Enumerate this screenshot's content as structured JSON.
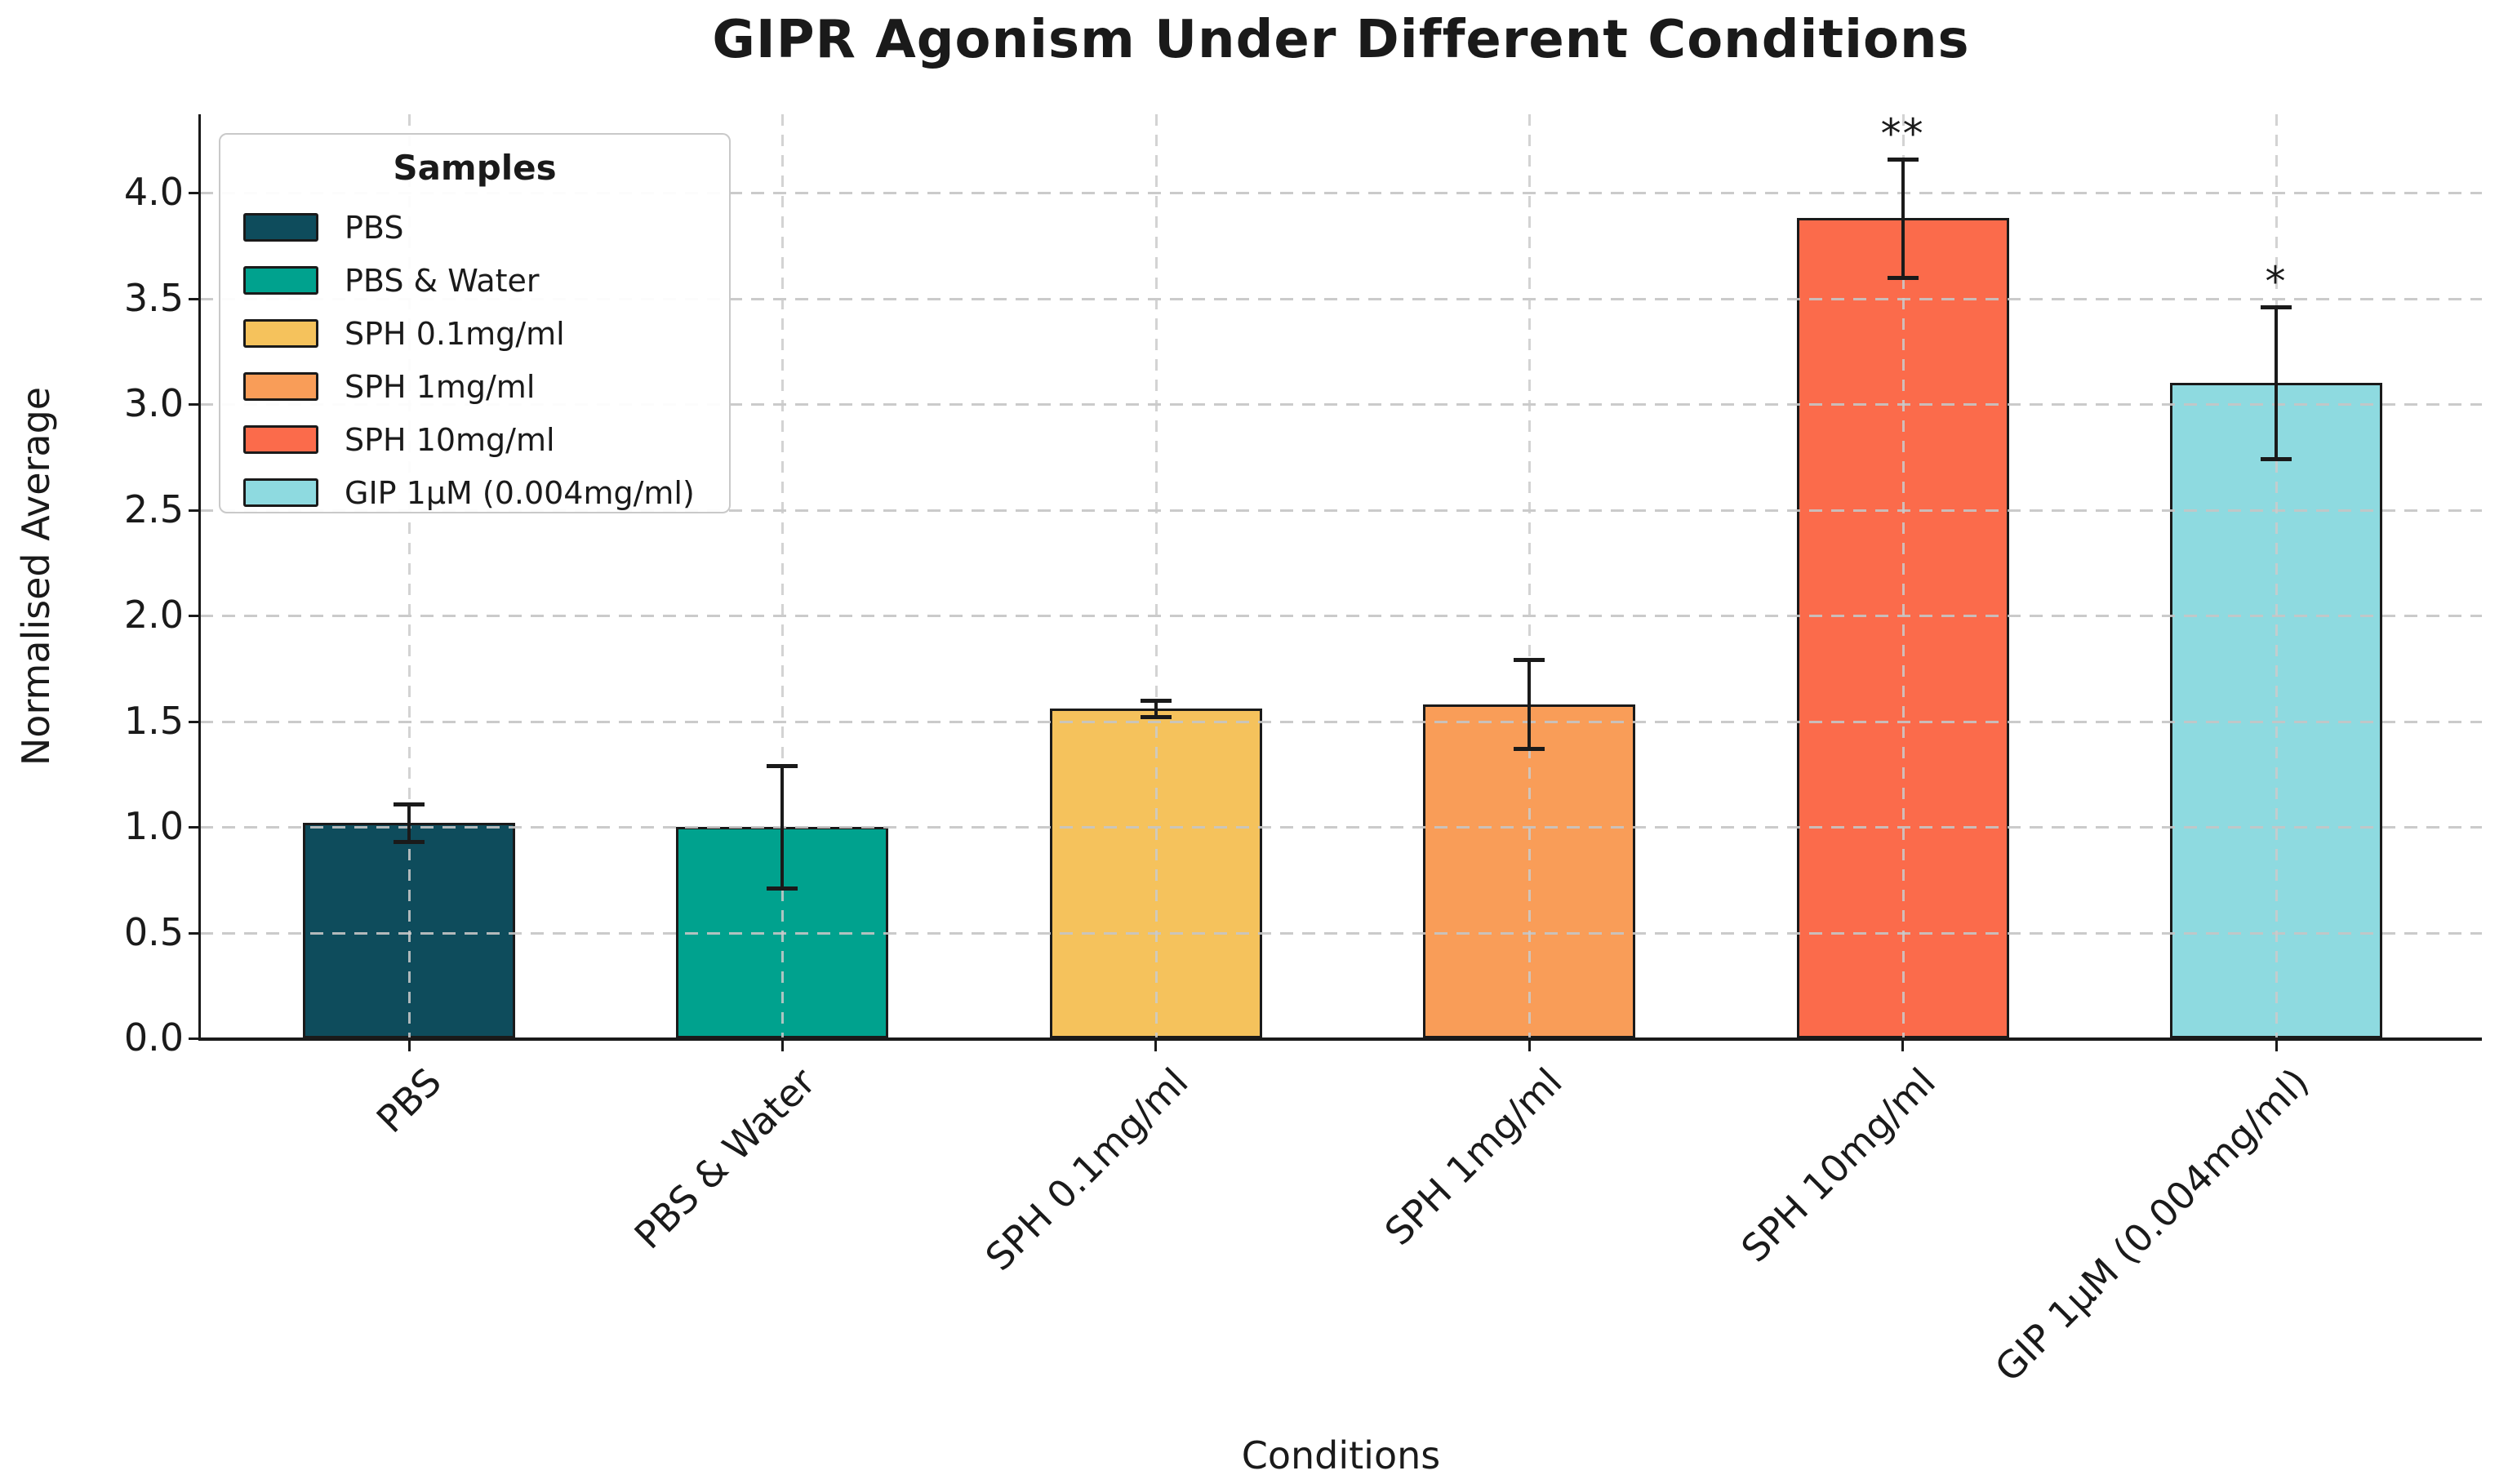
{
  "chart_data": {
    "type": "bar",
    "title": "GIPR Agonism Under Different Conditions",
    "xlabel": "Conditions",
    "ylabel": "Normalised Average",
    "categories": [
      "PBS",
      "PBS & Water",
      "SPH 0.1mg/ml",
      "SPH 1mg/ml",
      "SPH 10mg/ml",
      "GIP 1μM (0.004mg/ml)"
    ],
    "values": [
      1.02,
      1.0,
      1.56,
      1.58,
      3.88,
      3.1
    ],
    "errors": [
      0.09,
      0.29,
      0.04,
      0.21,
      0.28,
      0.36
    ],
    "significance": [
      "",
      "",
      "",
      "",
      "**",
      "*"
    ],
    "bar_colors": [
      "#0E4C5C",
      "#00A28E",
      "#F5C25C",
      "#F99D58",
      "#FB6B4B",
      "#8EDAE0"
    ],
    "ylim": [
      0,
      4.37
    ],
    "yticks": [
      "0.0",
      "0.5",
      "1.0",
      "1.5",
      "2.0",
      "2.5",
      "3.0",
      "3.5",
      "4.0"
    ],
    "grid": true,
    "grid_style": "dashed",
    "grid_color": "#c8c8c8",
    "axis_color": "#1a1a1a",
    "legend": {
      "title": "Samples",
      "position": "upper-left",
      "items": [
        {
          "label": "PBS",
          "color": "#0E4C5C"
        },
        {
          "label": "PBS & Water",
          "color": "#00A28E"
        },
        {
          "label": "SPH 0.1mg/ml",
          "color": "#F5C25C"
        },
        {
          "label": "SPH 1mg/ml",
          "color": "#F99D58"
        },
        {
          "label": "SPH 10mg/ml",
          "color": "#FB6B4B"
        },
        {
          "label": "GIP 1μM (0.004mg/ml)",
          "color": "#8EDAE0"
        }
      ]
    }
  }
}
